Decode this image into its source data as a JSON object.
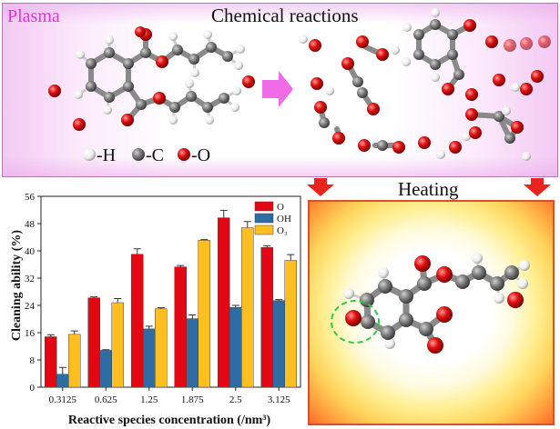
{
  "top_panel": {
    "plasma_label": "Plasma",
    "reactions_label": "Chemical reactions",
    "atom_legend": [
      {
        "label": "-H",
        "color": "#ffffff"
      },
      {
        "label": "-C",
        "color": "#707070"
      },
      {
        "label": "-O",
        "color": "#e01010"
      }
    ]
  },
  "heating_label": "Heating",
  "colors": {
    "O": "#e30613",
    "OH": "#2e6ca4",
    "O3": "#ffbf1f",
    "plasma": "#e62ee6",
    "arrow": "#e8241c"
  },
  "chart_data": {
    "type": "bar",
    "categories": [
      "0.3125",
      "0.625",
      "1.25",
      "1.875",
      "2.5",
      "3.125"
    ],
    "series": [
      {
        "name": "O",
        "values": [
          14.8,
          26.2,
          39.0,
          35.3,
          49.7,
          41.0
        ],
        "errors": [
          0.6,
          0.3,
          1.6,
          0.4,
          2.2,
          0.5
        ]
      },
      {
        "name": "OH",
        "values": [
          3.8,
          10.8,
          17.1,
          20.1,
          23.4,
          25.4
        ],
        "errors": [
          2.0,
          0.2,
          0.8,
          1.1,
          0.6,
          0.3
        ]
      },
      {
        "name": "O₃",
        "values": [
          15.5,
          24.8,
          23.0,
          43.1,
          46.8,
          37.2
        ],
        "errors": [
          1.0,
          1.2,
          0.3,
          0.2,
          1.8,
          1.7
        ]
      }
    ],
    "xlabel": "Reactive species concentration (/nm³)",
    "ylabel": "Cleaning ability (%)",
    "ylim": [
      0,
      56
    ],
    "yticks": [
      "0",
      "8",
      "16",
      "24",
      "32",
      "40",
      "48",
      "56"
    ],
    "legend_position": "top-right"
  }
}
